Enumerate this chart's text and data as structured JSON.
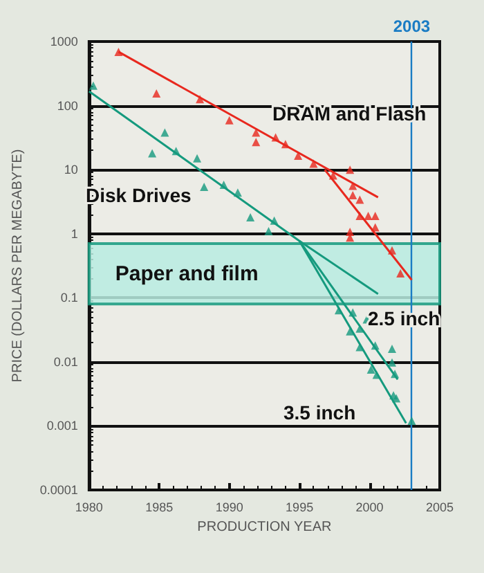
{
  "chart_data": {
    "type": "scatter",
    "xlabel": "PRODUCTION YEAR",
    "ylabel": "PRICE (DOLLARS PER MEGABYTE)",
    "log": "y",
    "grid": "y",
    "xlim": [
      1980,
      2005
    ],
    "xticks": [
      1980,
      1985,
      1990,
      1995,
      2000,
      2005
    ],
    "ylim": [
      0.0001,
      1000
    ],
    "yticks": [
      0.0001,
      0.001,
      0.01,
      0.1,
      1,
      10,
      100,
      1000
    ],
    "series": [
      {
        "marker": "triangle",
        "color": "#e8281e",
        "x": [
          1982.1,
          1984.8,
          1987.9,
          1990.0,
          1991.9,
          1991.9,
          1993.3,
          1994.0,
          1994.9,
          1996.0,
          1997.4,
          1998.6,
          1998.8,
          1998.8,
          1999.3,
          1999.3,
          1999.9,
          2000.4,
          2000.4,
          1998.6,
          1998.6,
          2001.6,
          2002.2
        ],
        "values": [
          690,
          155,
          126,
          59,
          38,
          27,
          32,
          25,
          16.5,
          12.4,
          8.1,
          10,
          5.6,
          4,
          3.4,
          1.9,
          1.9,
          1.9,
          1.26,
          1.07,
          0.87,
          0.55,
          0.24
        ]
      },
      {
        "type": "line",
        "marker": "none",
        "color": "#e8281e",
        "x": [
          1982.1,
          2000.6
        ],
        "values": [
          690,
          3.7
        ]
      },
      {
        "type": "line",
        "marker": "none",
        "color": "#e8281e",
        "x": [
          1996.8,
          2003.0
        ],
        "values": [
          10,
          0.19
        ]
      },
      {
        "marker": "triangle",
        "color": "#159a7e",
        "x": [
          1980.3,
          1984.5,
          1985.4,
          1986.2,
          1987.7,
          1988.2,
          1989.6,
          1990.6,
          1991.5,
          1993.2,
          1992.8,
          1997.8,
          1998.8,
          1998.6,
          1999.3,
          1999.8,
          1999.3,
          2000.4,
          2001.6,
          2001.6,
          2000.1,
          2000.5,
          2001.8,
          2001.7,
          2001.9,
          2003.0
        ],
        "values": [
          205,
          18,
          38,
          19.5,
          15,
          5.4,
          5.8,
          4.4,
          1.8,
          1.6,
          1.1,
          0.064,
          0.059,
          0.03,
          0.033,
          0.046,
          0.017,
          0.018,
          0.016,
          0.0098,
          0.0076,
          0.0063,
          0.0065,
          0.003,
          0.0027,
          0.0012
        ]
      },
      {
        "type": "line",
        "marker": "none",
        "color": "#159a7e",
        "x": [
          1980,
          1995,
          2000.6
        ],
        "values": [
          167,
          0.77,
          0.115
        ]
      },
      {
        "type": "line",
        "marker": "none",
        "color": "#159a7e",
        "x": [
          1995,
          2002
        ],
        "values": [
          0.77,
          0.0053
        ]
      },
      {
        "type": "line",
        "marker": "none",
        "color": "#159a7e",
        "x": [
          1995,
          2002.6
        ],
        "values": [
          0.77,
          0.0011
        ]
      }
    ],
    "bands": [
      {
        "axis": "y",
        "from": 0.08,
        "to": 0.7,
        "label": "Paper and film",
        "color": "#b8ece0"
      }
    ],
    "ref_lines": [
      {
        "axis": "x",
        "value": 2003,
        "label": "2003",
        "color": "#1a7cc4"
      }
    ],
    "annotations": [
      "DRAM and Flash",
      "Disk Drives",
      "2.5 inch",
      "3.5 inch"
    ]
  }
}
